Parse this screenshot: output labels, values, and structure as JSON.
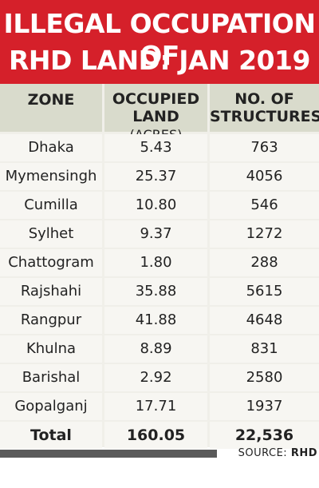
{
  "title": {
    "line1": "ILLEGAL OCCUPATION OF",
    "line2": "RHD LAND: JAN 2019"
  },
  "chart_data": {
    "type": "table",
    "title": "ILLEGAL OCCUPATION OF RHD LAND: JAN 2019",
    "columns": [
      {
        "label": "ZONE"
      },
      {
        "label": "OCCUPIED",
        "label2": "LAND",
        "unit": "(ACRES)"
      },
      {
        "label": "NO. OF",
        "label2": "STRUCTURES"
      }
    ],
    "rows": [
      {
        "zone": "Dhaka",
        "land": "5.43",
        "structures": "763"
      },
      {
        "zone": "Mymensingh",
        "land": "25.37",
        "structures": "4056"
      },
      {
        "zone": "Cumilla",
        "land": "10.80",
        "structures": "546"
      },
      {
        "zone": "Sylhet",
        "land": "9.37",
        "structures": "1272"
      },
      {
        "zone": "Chattogram",
        "land": "1.80",
        "structures": "288"
      },
      {
        "zone": "Rajshahi",
        "land": "35.88",
        "structures": "5615"
      },
      {
        "zone": "Rangpur",
        "land": "41.88",
        "structures": "4648"
      },
      {
        "zone": "Khulna",
        "land": "8.89",
        "structures": "831"
      },
      {
        "zone": "Barishal",
        "land": "2.92",
        "structures": "2580"
      },
      {
        "zone": "Gopalganj",
        "land": "17.71",
        "structures": "1937"
      }
    ],
    "total": {
      "zone": "Total",
      "land": "160.05",
      "structures": "22,536"
    }
  },
  "source": {
    "label": "SOURCE:",
    "name": "RHD"
  },
  "colors": {
    "title_bg": "#d5202a",
    "header_bg": "#d9dbcc",
    "cell_bg": "#f7f6f2",
    "bar": "#5a5a5a"
  }
}
